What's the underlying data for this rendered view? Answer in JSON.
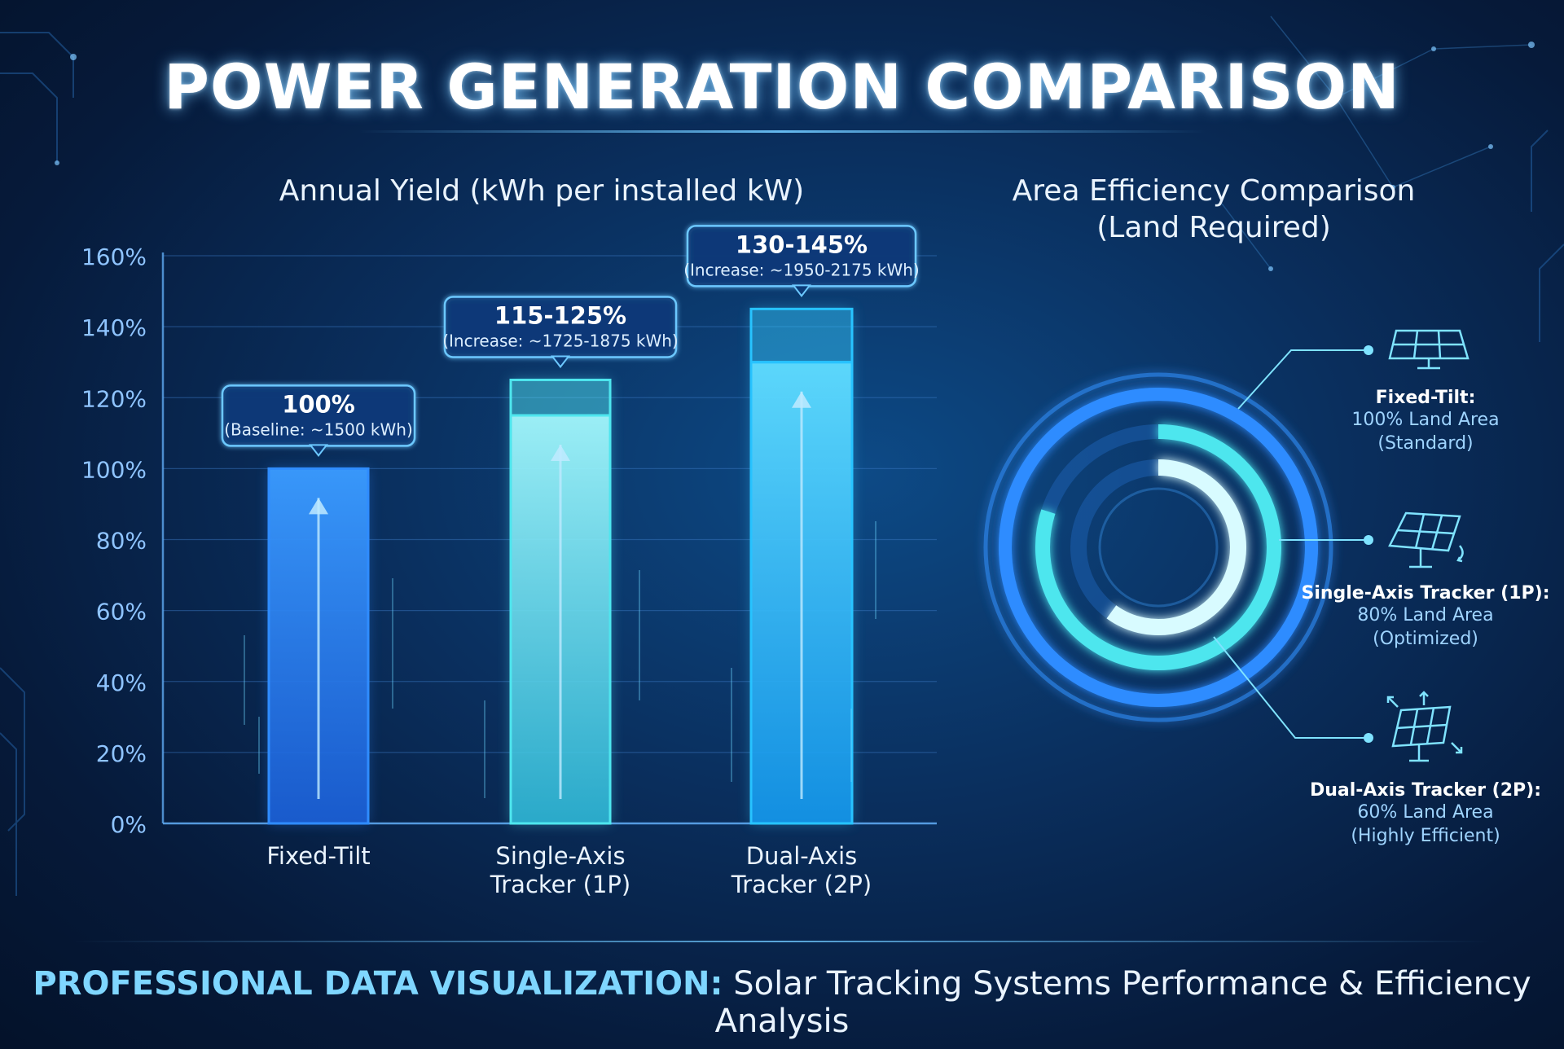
{
  "title": "POWER GENERATION COMPARISON",
  "left_subtitle": "Annual Yield (kWh per installed kW)",
  "right_subtitle_line1": "Area Efficiency Comparison",
  "right_subtitle_line2": "(Land Required)",
  "footer": {
    "highlight": "PROFESSIONAL DATA VISUALIZATION:",
    "text": " Solar Tracking Systems Performance & Efficiency Analysis"
  },
  "colors": {
    "fixed": "#2f8cff",
    "single": "#4ee6ee",
    "dual": "#27c3ff",
    "accent": "#7fd6ff"
  },
  "chart_data": [
    {
      "type": "bar",
      "title": "Annual Yield (kWh per installed kW)",
      "ylim": [
        0,
        160
      ],
      "yticks": [
        0,
        20,
        40,
        60,
        80,
        100,
        120,
        140,
        160
      ],
      "ytick_suffix": "%",
      "grid": true,
      "categories": [
        "Fixed-Tilt",
        "Single-Axis Tracker (1P)",
        "Dual-Axis Tracker (2P)"
      ],
      "category_lines": [
        [
          "Fixed-Tilt"
        ],
        [
          "Single-Axis",
          "Tracker (1P)"
        ],
        [
          "Dual-Axis",
          "Tracker (2P)"
        ]
      ],
      "values_low": [
        100,
        115,
        130
      ],
      "values_high": [
        100,
        125,
        145
      ],
      "labels": [
        "100%",
        "115-125%",
        "130-145%"
      ],
      "sublabels": [
        "(Baseline: ~1500 kWh)",
        "(Increase: ~1725-1875 kWh)",
        "(Increase: ~1950-2175 kWh)"
      ]
    },
    {
      "type": "pie",
      "title": "Area Efficiency Comparison (Land Required)",
      "series": [
        {
          "name": "Fixed-Tilt",
          "value": 100,
          "detail": "100% Land Area",
          "note": "(Standard)"
        },
        {
          "name": "Single-Axis Tracker (1P)",
          "value": 80,
          "detail": "80% Land Area",
          "note": "(Optimized)"
        },
        {
          "name": "Dual-Axis Tracker (2P)",
          "value": 60,
          "detail": "60% Land Area",
          "note": "(Highly Efficient)"
        }
      ],
      "legend": "right"
    }
  ]
}
